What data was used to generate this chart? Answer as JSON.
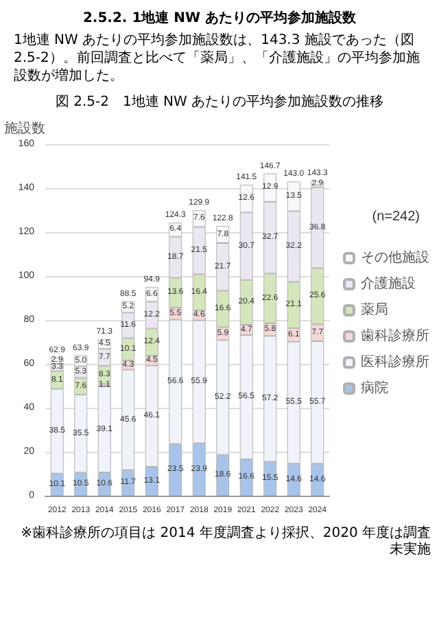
{
  "chart_data": {
    "type": "bar",
    "stacked": true,
    "title": "図 2.5-2　1地連 NW あたりの平均参加施設数の推移",
    "ylabel": "施設数",
    "annotations": [
      "2.5.2. 1地連 NW あたりの平均参加施設数",
      "1地連 NW あたりの平均参加施設数は、143.3 施設であった（図 2.5-2）。前回調査と比べて「薬局」、「介護施設」の平均参加施設数が増加した。",
      "(n=242)",
      "※歯科診療所の項目は 2014 年度調査より採択、2020 年度は調査未実施"
    ],
    "categories": [
      "2012",
      "2013",
      "2014",
      "2015",
      "2016",
      "2017",
      "2018",
      "2019",
      "2021",
      "2022",
      "2023",
      "2024"
    ],
    "series": [
      {
        "name": "病院",
        "color": "#a9c4ea",
        "values": [
          10.1,
          10.5,
          10.6,
          11.7,
          13.1,
          23.5,
          23.9,
          18.6,
          16.6,
          15.5,
          14.6,
          14.6
        ]
      },
      {
        "name": "医科診療所",
        "color": "#f1f3fa",
        "values": [
          38.5,
          35.5,
          39.1,
          45.6,
          46.1,
          56.6,
          55.9,
          52.2,
          56.5,
          57.2,
          55.5,
          55.7
        ]
      },
      {
        "name": "歯科診療所",
        "color": "#f5d9d9",
        "values": [
          null,
          null,
          1.1,
          4.3,
          4.5,
          5.5,
          4.6,
          5.9,
          4.7,
          5.8,
          6.1,
          7.7
        ]
      },
      {
        "name": "薬局",
        "color": "#d5e6bc",
        "values": [
          8.1,
          7.6,
          8.3,
          10.1,
          12.4,
          13.6,
          16.4,
          16.6,
          20.4,
          22.6,
          21.1,
          25.6
        ]
      },
      {
        "name": "介護施設",
        "color": "#ebe7f1",
        "values": [
          3.3,
          5.3,
          7.7,
          11.6,
          12.2,
          18.7,
          21.5,
          21.7,
          30.7,
          32.7,
          32.2,
          36.8
        ]
      },
      {
        "name": "その他施設",
        "color": "#f8f8f8",
        "values": [
          2.9,
          5.0,
          4.5,
          5.2,
          6.6,
          6.4,
          7.6,
          7.8,
          12.6,
          12.9,
          13.5,
          2.9
        ],
        "value_labels": [
          "2.9",
          "5.0",
          "4.5",
          "5.2",
          "6.6",
          "6.4",
          "7.6",
          "7.8",
          "12.6",
          "12.9",
          "13.5",
          "2.9"
        ]
      }
    ],
    "totals": [
      "62.9",
      "63.9",
      "71.3",
      "88.5",
      "94.9",
      "124.3",
      "129.9",
      "122.8",
      "141.5",
      "146.7",
      "143.0",
      "143.3"
    ],
    "data_labels": true,
    "ylim": [
      0,
      160
    ],
    "yticks": [
      0,
      20,
      40,
      60,
      80,
      100,
      120,
      140,
      160
    ],
    "grid": "y",
    "legend": "right"
  }
}
